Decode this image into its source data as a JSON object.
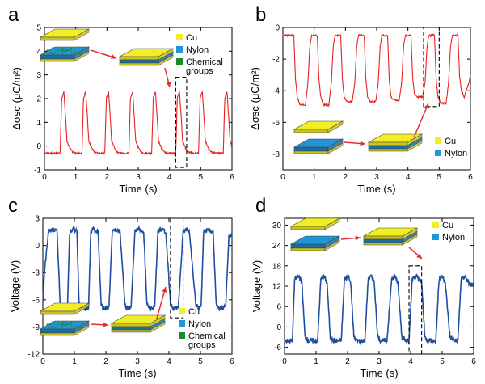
{
  "colors": {
    "red": "#e8231f",
    "blue": "#1f4fa0",
    "cu": "#f2ee25",
    "nylon": "#2196d6",
    "chemical": "#1a8a2c",
    "plate_side_cu": "#c9c21a",
    "plate_side_nylon": "#1a6da0"
  },
  "chart_data": [
    {
      "panel": "a",
      "type": "line",
      "xlabel": "Time (s)",
      "ylabel": "Δσsc (μC/m²)",
      "xlim": [
        0,
        6
      ],
      "ylim": [
        -1,
        5
      ],
      "xticks": [
        "0",
        "1",
        "2",
        "3",
        "4",
        "5",
        "6"
      ],
      "yticks": [
        "-1",
        "0",
        "1",
        "2",
        "3",
        "4",
        "5"
      ],
      "series": [
        {
          "color": "red",
          "x": [
            0.0,
            0.5,
            0.55,
            0.62,
            0.68,
            0.72,
            0.82,
            0.9,
            1.0,
            1.2,
            1.25,
            1.32,
            1.38,
            1.42,
            1.52,
            1.6,
            1.7,
            1.93,
            1.98,
            2.05,
            2.11,
            2.15,
            2.25,
            2.33,
            2.45,
            2.7,
            2.75,
            2.82,
            2.88,
            2.92,
            3.02,
            3.1,
            3.2,
            3.43,
            3.48,
            3.55,
            3.61,
            3.65,
            3.75,
            3.83,
            3.95,
            4.2,
            4.25,
            4.32,
            4.38,
            4.42,
            4.52,
            4.6,
            4.75,
            4.93,
            4.98,
            5.05,
            5.11,
            5.15,
            5.25,
            5.33,
            5.5,
            5.72,
            5.77,
            5.84,
            5.9,
            5.94,
            6.0
          ],
          "y": [
            -0.3,
            -0.3,
            2.0,
            2.3,
            1.1,
            0.2,
            -0.1,
            -0.25,
            -0.3,
            -0.3,
            2.0,
            2.3,
            1.1,
            0.2,
            -0.1,
            -0.25,
            -0.3,
            -0.3,
            2.0,
            2.3,
            1.1,
            0.2,
            -0.1,
            -0.25,
            -0.3,
            -0.3,
            2.0,
            2.3,
            1.1,
            0.2,
            -0.1,
            -0.25,
            -0.3,
            -0.3,
            2.0,
            2.3,
            1.1,
            0.2,
            -0.1,
            -0.25,
            -0.3,
            -0.3,
            2.0,
            2.3,
            1.1,
            0.2,
            -0.1,
            -0.25,
            -0.3,
            -0.3,
            2.0,
            2.3,
            1.1,
            0.2,
            -0.1,
            -0.25,
            -0.3,
            -0.3,
            2.0,
            2.3,
            1.1,
            0.2,
            0.0
          ]
        }
      ],
      "highlight": {
        "x": [
          4.2,
          4.55
        ],
        "y": [
          -0.9,
          2.9
        ]
      },
      "legend": [
        "Cu",
        "Nylon",
        "Chemical groups"
      ],
      "legend_multiline": [
        "Chemical",
        "groups"
      ]
    },
    {
      "panel": "b",
      "type": "line",
      "xlabel": "Time (s)",
      "ylabel": "Δσsc (μC/m²)",
      "xlim": [
        0,
        6
      ],
      "ylim": [
        -9,
        0
      ],
      "xticks": [
        "0",
        "1",
        "2",
        "3",
        "4",
        "5",
        "6"
      ],
      "yticks": [
        "-8",
        "-6",
        "-4",
        "-2",
        "0"
      ],
      "series": [
        {
          "color": "red",
          "x": [
            0.0,
            0.35,
            0.4,
            0.46,
            0.55,
            0.72,
            0.8,
            0.86,
            0.92,
            1.1,
            1.15,
            1.21,
            1.3,
            1.47,
            1.55,
            1.61,
            1.67,
            1.85,
            1.9,
            1.96,
            2.05,
            2.22,
            2.3,
            2.36,
            2.42,
            2.6,
            2.65,
            2.71,
            2.8,
            2.97,
            3.05,
            3.11,
            3.17,
            3.35,
            3.4,
            3.46,
            3.55,
            3.72,
            3.8,
            3.86,
            3.92,
            4.1,
            4.15,
            4.21,
            4.3,
            4.47,
            4.55,
            4.61,
            4.67,
            4.85,
            4.9,
            4.96,
            5.05,
            5.22,
            5.3,
            5.36,
            5.42,
            5.6,
            5.65,
            5.71,
            5.8,
            5.95,
            6.0
          ],
          "y": [
            -0.5,
            -0.5,
            -3.2,
            -4.4,
            -4.9,
            -4.9,
            -3.5,
            -1.2,
            -0.5,
            -0.5,
            -3.2,
            -4.4,
            -4.9,
            -4.9,
            -3.5,
            -1.2,
            -0.5,
            -0.5,
            -3.2,
            -4.4,
            -4.7,
            -4.7,
            -3.5,
            -1.2,
            -0.5,
            -0.5,
            -3.2,
            -4.4,
            -4.7,
            -4.7,
            -3.5,
            -1.2,
            -0.5,
            -0.5,
            -3.2,
            -4.4,
            -4.6,
            -4.6,
            -3.5,
            -1.2,
            -0.5,
            -0.5,
            -3.2,
            -4.2,
            -4.4,
            -4.4,
            -3.5,
            -1.2,
            -0.5,
            -0.5,
            -3.2,
            -4.4,
            -4.8,
            -4.8,
            -3.5,
            -1.2,
            -0.5,
            -0.5,
            -3.0,
            -4.0,
            -4.4,
            -3.5,
            -3.0
          ]
        }
      ],
      "highlight": {
        "x": [
          4.5,
          5.0
        ],
        "y": [
          -5.0,
          0.0
        ]
      },
      "legend": [
        "Cu",
        "Nylon"
      ]
    },
    {
      "panel": "c",
      "type": "line",
      "xlabel": "Time (s)",
      "ylabel": "Voltage (V)",
      "xlim": [
        0,
        6
      ],
      "ylim": [
        -12,
        3
      ],
      "xticks": [
        "0",
        "1",
        "2",
        "3",
        "4",
        "5",
        "6"
      ],
      "yticks": [
        "-12",
        "-9",
        "-6",
        "-3",
        "0",
        "3"
      ],
      "series": [
        {
          "color": "blue",
          "x": [
            0.0,
            0.05,
            0.18,
            0.3,
            0.45,
            0.55,
            0.62,
            0.78,
            0.85,
            0.98,
            1.08,
            1.15,
            1.3,
            1.45,
            1.52,
            1.6,
            1.75,
            1.85,
            1.92,
            2.1,
            2.2,
            2.3,
            2.45,
            2.6,
            2.68,
            2.8,
            2.92,
            3.05,
            3.2,
            3.3,
            3.4,
            3.55,
            3.65,
            3.75,
            3.9,
            4.05,
            4.15,
            4.3,
            4.45,
            4.55,
            4.65,
            4.85,
            4.95,
            5.02,
            5.1,
            5.3,
            5.4,
            5.5,
            5.6,
            5.8,
            5.9,
            6.0
          ],
          "y": [
            -6.0,
            -3.0,
            1.5,
            1.8,
            1.5,
            -6.5,
            -7.0,
            -6.8,
            1.5,
            1.8,
            1.5,
            -6.5,
            -7.0,
            -6.8,
            1.5,
            1.8,
            1.5,
            -6.5,
            -7.0,
            -6.8,
            1.5,
            1.8,
            1.5,
            -6.5,
            -7.0,
            -6.8,
            1.5,
            1.8,
            1.5,
            -6.5,
            -7.0,
            -6.8,
            1.5,
            1.8,
            1.5,
            -6.5,
            -7.0,
            -6.8,
            1.5,
            1.8,
            1.5,
            -6.5,
            -7.0,
            -6.8,
            1.5,
            1.8,
            1.5,
            -6.5,
            -7.0,
            -6.8,
            1.0,
            1.2
          ]
        }
      ],
      "highlight": {
        "x": [
          4.05,
          4.45
        ],
        "y": [
          -8.0,
          3.0
        ]
      },
      "legend": [
        "Cu",
        "Nylon",
        "Chemical groups"
      ],
      "legend_multiline": [
        "Chemical",
        "groups"
      ]
    },
    {
      "panel": "d",
      "type": "line",
      "xlabel": "Time (s)",
      "ylabel": "Voltage (V)",
      "xlim": [
        0,
        6
      ],
      "ylim": [
        -8,
        32
      ],
      "xticks": [
        "0",
        "1",
        "2",
        "3",
        "4",
        "5",
        "6"
      ],
      "yticks": [
        "-6",
        "0",
        "6",
        "12",
        "18",
        "24",
        "30"
      ],
      "series": [
        {
          "color": "blue",
          "x": [
            0.0,
            0.25,
            0.32,
            0.45,
            0.55,
            0.65,
            0.75,
            0.9,
            1.05,
            1.15,
            1.25,
            1.35,
            1.45,
            1.55,
            1.68,
            1.8,
            1.9,
            2.0,
            2.1,
            2.2,
            2.3,
            2.4,
            2.55,
            2.65,
            2.75,
            2.85,
            2.95,
            3.05,
            3.15,
            3.25,
            3.4,
            3.5,
            3.6,
            3.72,
            3.85,
            3.95,
            4.05,
            4.2,
            4.35,
            4.45,
            4.55,
            4.68,
            4.8,
            4.9,
            5.0,
            5.1,
            5.25,
            5.4,
            5.5,
            5.6,
            5.72,
            5.85,
            6.0
          ],
          "y": [
            -4.0,
            -4.0,
            14.0,
            15.0,
            13.0,
            -3.0,
            -4.0,
            -4.0,
            -4.0,
            14.0,
            15.0,
            13.0,
            -3.0,
            -4.0,
            -4.0,
            -4.0,
            14.0,
            15.0,
            13.0,
            -3.0,
            -4.0,
            -4.0,
            -4.0,
            14.0,
            15.0,
            13.0,
            -3.0,
            -4.0,
            -4.0,
            -4.0,
            14.0,
            15.0,
            13.0,
            -3.0,
            -4.0,
            -4.0,
            14.0,
            15.0,
            13.0,
            -3.0,
            -4.0,
            -4.0,
            -4.0,
            14.0,
            15.0,
            13.0,
            -3.0,
            -4.0,
            -4.0,
            14.0,
            15.0,
            13.0,
            12.0
          ]
        }
      ],
      "highlight": {
        "x": [
          3.95,
          4.35
        ],
        "y": [
          -8.0,
          18.0
        ]
      },
      "legend": [
        "Cu",
        "Nylon"
      ]
    }
  ]
}
